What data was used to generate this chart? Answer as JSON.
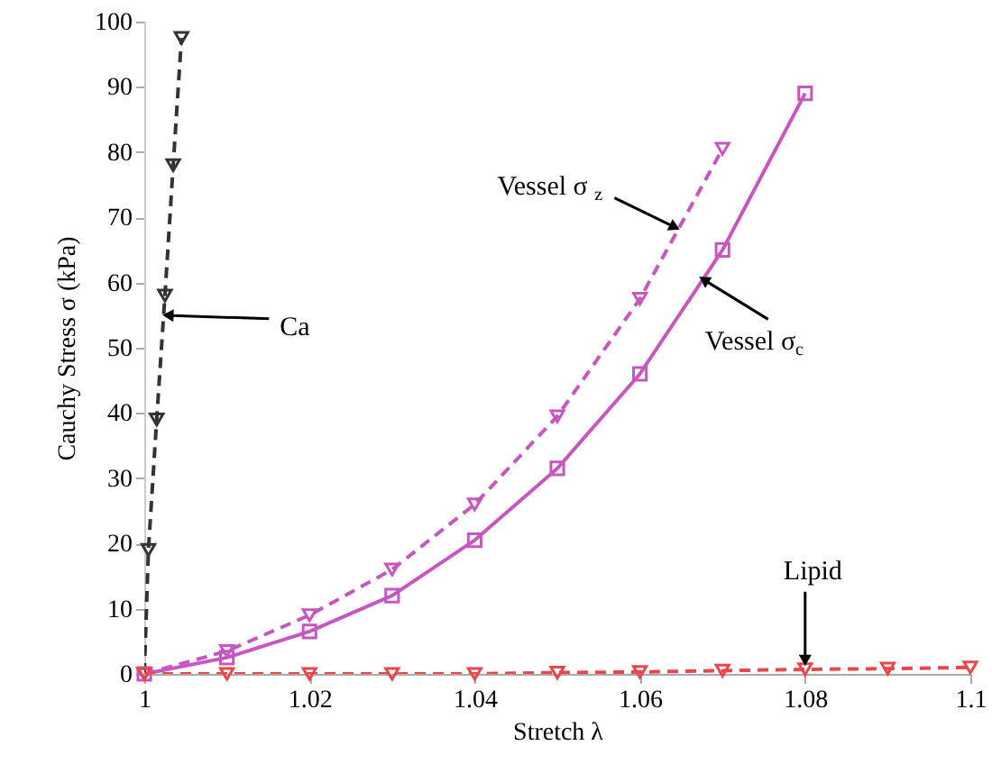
{
  "chart_data": {
    "type": "line",
    "xlabel": "Stretch λ",
    "ylabel": "Cauchy Stress σ (kPa)",
    "xlim": [
      1,
      1.1
    ],
    "xticks": [
      1,
      1.02,
      1.04,
      1.06,
      1.08,
      1.1
    ],
    "ylim": [
      0,
      100
    ],
    "yticks": [
      0,
      10,
      20,
      30,
      40,
      50,
      60,
      70,
      80,
      90,
      100
    ],
    "grid": false,
    "series": [
      {
        "color": "#333333",
        "line_style": "dashed",
        "marker": "triangle",
        "x": [
          1,
          1.0005,
          1.0015,
          1.0025,
          1.0035,
          1.0045
        ],
        "values": [
          0,
          19,
          39,
          58,
          78,
          97.5
        ]
      },
      {
        "color": "#c856c0",
        "line_style": "solid",
        "marker": "square",
        "x": [
          1,
          1.01,
          1.02,
          1.03,
          1.04,
          1.05,
          1.06,
          1.07,
          1.08
        ],
        "values": [
          0,
          2.5,
          6.5,
          12,
          20.5,
          31.5,
          46,
          65,
          89
        ]
      },
      {
        "color": "#c856c0",
        "line_style": "dashed",
        "marker": "triangle",
        "x": [
          1,
          1.01,
          1.02,
          1.03,
          1.04,
          1.05,
          1.06,
          1.07
        ],
        "values": [
          0,
          3.5,
          9,
          16,
          26,
          39.5,
          57.5,
          80.5
        ]
      },
      {
        "color": "#e8474b",
        "line_style": "dashed",
        "marker": "triangle",
        "x": [
          1,
          1.01,
          1.02,
          1.03,
          1.04,
          1.05,
          1.06,
          1.07,
          1.08,
          1.09,
          1.1
        ],
        "values": [
          0,
          0,
          0,
          0,
          0,
          0.2,
          0.3,
          0.5,
          0.7,
          0.8,
          1
        ]
      }
    ],
    "annotations": [
      {
        "text": "Ca",
        "x": 1.002,
        "y": 55
      },
      {
        "text": "Vessel  σ$_{z}$",
        "x": 1.065,
        "y": 68
      },
      {
        "text": "Vessel σ$_{c}$",
        "x": 1.067,
        "y": 61
      },
      {
        "text": "Lipid",
        "x": 1.08,
        "y": 1
      }
    ]
  }
}
